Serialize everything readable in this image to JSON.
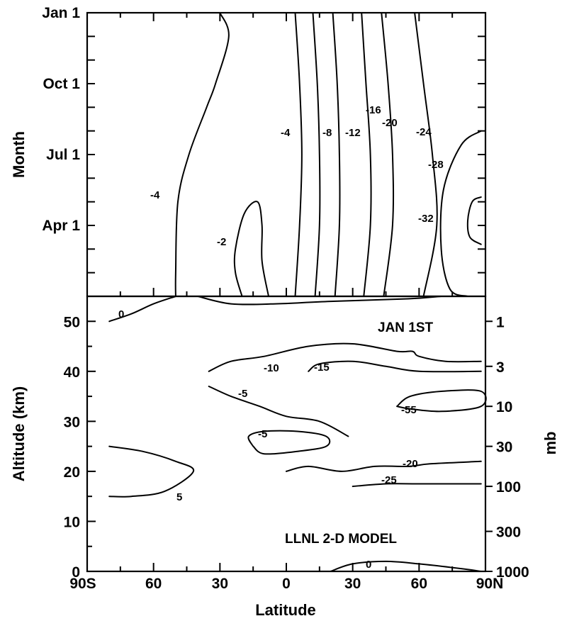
{
  "chart_data": [
    {
      "type": "contour",
      "panel": "top",
      "ylabel": "Month",
      "xlim": [
        -90,
        90
      ],
      "y_tick_labels": [
        {
          "label": "Jan 1",
          "month": 12
        },
        {
          "label": "Oct 1",
          "month": 9
        },
        {
          "label": "Jul 1",
          "month": 6
        },
        {
          "label": "Apr 1",
          "month": 3
        }
      ],
      "contours": [
        {
          "label": "-4",
          "points": [
            [
              -30,
              12
            ],
            [
              -26,
              11
            ],
            [
              -32,
              9
            ],
            [
              -36,
              8
            ],
            [
              -44,
              6
            ],
            [
              -49,
              4
            ],
            [
              -50,
              1
            ],
            [
              -50,
              0
            ]
          ]
        },
        {
          "label": "-2",
          "points": [
            [
              -20,
              0
            ],
            [
              -23,
              1
            ],
            [
              -23,
              2
            ],
            [
              -19,
              3.5
            ],
            [
              -13,
              4
            ],
            [
              -11,
              3
            ],
            [
              -11,
              1.5
            ],
            [
              -8,
              0
            ]
          ]
        },
        {
          "label": "-4",
          "points": [
            [
              4,
              0
            ],
            [
              6,
              3
            ],
            [
              7,
              6
            ],
            [
              6,
              9
            ],
            [
              4,
              12
            ]
          ]
        },
        {
          "label": "-8",
          "points": [
            [
              13,
              0
            ],
            [
              15,
              3
            ],
            [
              15,
              6
            ],
            [
              14,
              9
            ],
            [
              12,
              12
            ]
          ]
        },
        {
          "label": "-12",
          "points": [
            [
              22,
              0
            ],
            [
              24,
              3
            ],
            [
              24,
              6
            ],
            [
              23,
              9
            ],
            [
              21,
              12
            ]
          ]
        },
        {
          "label": "-16",
          "points": [
            [
              35,
              0
            ],
            [
              38,
              3
            ],
            [
              38,
              6
            ],
            [
              36,
              9
            ],
            [
              34,
              12
            ]
          ]
        },
        {
          "label": "-20",
          "points": [
            [
              44,
              0
            ],
            [
              48,
              3
            ],
            [
              48,
              6
            ],
            [
              46,
              9
            ],
            [
              43,
              12
            ]
          ]
        },
        {
          "label": "-24",
          "points": [
            [
              62,
              0
            ],
            [
              68,
              3
            ],
            [
              66,
              6
            ],
            [
              62,
              9
            ],
            [
              58,
              12
            ]
          ]
        },
        {
          "label": "-28",
          "points": [
            [
              88,
              7
            ],
            [
              79,
              6.4
            ],
            [
              71,
              4.5
            ],
            [
              70,
              2
            ],
            [
              74,
              0.3
            ],
            [
              82,
              0
            ]
          ]
        },
        {
          "label": "-32",
          "points": [
            [
              88,
              4.2
            ],
            [
              84,
              4
            ],
            [
              82,
              3.2
            ],
            [
              83,
              2.5
            ],
            [
              88,
              2.2
            ]
          ]
        }
      ],
      "annotations": []
    },
    {
      "type": "contour",
      "panel": "bottom",
      "xlabel": "Latitude",
      "ylabel": "Altitude (km)",
      "ylabel_right": "mb",
      "xlim": [
        -90,
        90
      ],
      "ylim": [
        0,
        55
      ],
      "x_tick_labels": [
        {
          "label": "90S",
          "value": -90
        },
        {
          "label": "60",
          "value": -60
        },
        {
          "label": "30",
          "value": -30
        },
        {
          "label": "0",
          "value": 0
        },
        {
          "label": "30",
          "value": 30
        },
        {
          "label": "60",
          "value": 60
        },
        {
          "label": "90N",
          "value": 90
        }
      ],
      "y_ticks": [
        0,
        10,
        20,
        30,
        40,
        50
      ],
      "right_tick_labels": [
        {
          "label": "1",
          "alt": 50
        },
        {
          "label": "3",
          "alt": 41
        },
        {
          "label": "10",
          "alt": 33
        },
        {
          "label": "30",
          "alt": 25
        },
        {
          "label": "100",
          "alt": 17
        },
        {
          "label": "300",
          "alt": 8
        },
        {
          "label": "1000",
          "alt": 0
        }
      ],
      "contours": [
        {
          "label": "0",
          "points": [
            [
              -80,
              50
            ],
            [
              -70,
              51.5
            ],
            [
              -60,
              53.5
            ],
            [
              -50,
              55
            ]
          ]
        },
        {
          "label": "",
          "points": [
            [
              -40,
              55
            ],
            [
              -25,
              53.5
            ],
            [
              -5,
              53.5
            ],
            [
              20,
              54
            ],
            [
              55,
              54.5
            ],
            [
              70,
              55
            ]
          ]
        },
        {
          "label": "5",
          "points": [
            [
              -80,
              25
            ],
            [
              -65,
              24
            ],
            [
              -50,
              22
            ],
            [
              -42,
              20
            ],
            [
              -55,
              16
            ],
            [
              -70,
              15
            ],
            [
              -80,
              15
            ]
          ]
        },
        {
          "label": "-5",
          "points": [
            [
              -35,
              37
            ],
            [
              -25,
              35
            ],
            [
              -12,
              33
            ],
            [
              0,
              31
            ],
            [
              15,
              30
            ],
            [
              28,
              27
            ]
          ]
        },
        {
          "label": "-5",
          "points": [
            [
              -15,
              25
            ],
            [
              -10,
              23.5
            ],
            [
              5,
              24
            ],
            [
              18,
              25
            ],
            [
              18,
              27
            ],
            [
              5,
              28
            ],
            [
              -10,
              28
            ],
            [
              -17,
              27
            ],
            [
              -15,
              25
            ]
          ]
        },
        {
          "label": "-10",
          "points": [
            [
              -35,
              40
            ],
            [
              -25,
              42
            ],
            [
              -10,
              43
            ],
            [
              10,
              45
            ],
            [
              30,
              45.5
            ],
            [
              50,
              44
            ],
            [
              57,
              44
            ],
            [
              60,
              43
            ],
            [
              72,
              42
            ],
            [
              88,
              42
            ]
          ]
        },
        {
          "label": "-15",
          "points": [
            [
              10,
              40
            ],
            [
              15,
              41.5
            ],
            [
              30,
              42
            ],
            [
              45,
              41
            ],
            [
              60,
              40
            ],
            [
              88,
              40
            ]
          ]
        },
        {
          "label": "-20",
          "points": [
            [
              0,
              20
            ],
            [
              10,
              21
            ],
            [
              25,
              20
            ],
            [
              40,
              21
            ],
            [
              55,
              21
            ],
            [
              65,
              21.5
            ],
            [
              88,
              22
            ]
          ]
        },
        {
          "label": "-25",
          "points": [
            [
              30,
              17
            ],
            [
              45,
              17.5
            ],
            [
              60,
              17.5
            ],
            [
              88,
              17.5
            ]
          ]
        },
        {
          "label": "-55",
          "points": [
            [
              50,
              33
            ],
            [
              56,
              35
            ],
            [
              70,
              36
            ],
            [
              88,
              36
            ],
            [
              88,
              33
            ],
            [
              70,
              32
            ],
            [
              56,
              32.5
            ],
            [
              50,
              33
            ]
          ]
        },
        {
          "label": "0",
          "points": [
            [
              20,
              0
            ],
            [
              30,
              1.5
            ],
            [
              45,
              2
            ],
            [
              60,
              1.5
            ],
            [
              80,
              0.5
            ],
            [
              88,
              0
            ]
          ]
        }
      ],
      "annotations": [
        "JAN 1ST",
        "LLNL 2-D MODEL"
      ]
    }
  ],
  "labels": {
    "top_contours": [
      "-4",
      "-2",
      "-4",
      "-8",
      "-12",
      "-16",
      "-20",
      "-24",
      "-28",
      "-32"
    ],
    "bottom_contours": [
      "0",
      "5",
      "-5",
      "-5",
      "-10",
      "-15",
      "-55",
      "-20",
      "-25",
      "0"
    ]
  }
}
